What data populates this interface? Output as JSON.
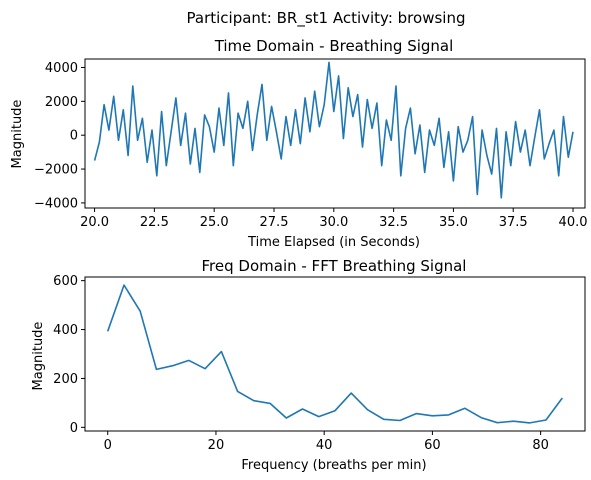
{
  "suptitle": "Participant: BR_st1  Activity: browsing",
  "chart_data": [
    {
      "type": "line",
      "title": "Time Domain - Breathing Signal",
      "xlabel": "Time Elapsed (in Seconds)",
      "ylabel": "Magnitude",
      "xlim": [
        19.6,
        40.5
      ],
      "ylim": [
        -4300,
        4500
      ],
      "xticks": [
        20.0,
        22.5,
        25.0,
        27.5,
        30.0,
        32.5,
        35.0,
        37.5,
        40.0
      ],
      "xtick_labels": [
        "20.0",
        "22.5",
        "25.0",
        "27.5",
        "30.0",
        "32.5",
        "35.0",
        "37.5",
        "40.0"
      ],
      "yticks": [
        -4000,
        -2000,
        0,
        2000,
        4000
      ],
      "ytick_labels": [
        "−4000",
        "−2000",
        "0",
        "2000",
        "4000"
      ],
      "grid": false,
      "series": [
        {
          "color": "#1f77b4",
          "x": [
            20.0,
            20.2,
            20.4,
            20.6,
            20.8,
            21.0,
            21.2,
            21.4,
            21.6,
            21.8,
            22.0,
            22.2,
            22.4,
            22.6,
            22.8,
            23.0,
            23.2,
            23.4,
            23.6,
            23.8,
            24.0,
            24.2,
            24.4,
            24.6,
            24.8,
            25.0,
            25.2,
            25.4,
            25.6,
            25.8,
            26.0,
            26.2,
            26.4,
            26.6,
            26.8,
            27.0,
            27.2,
            27.4,
            27.6,
            27.8,
            28.0,
            28.2,
            28.4,
            28.6,
            28.8,
            29.0,
            29.2,
            29.4,
            29.6,
            29.8,
            30.0,
            30.2,
            30.4,
            30.6,
            30.8,
            31.0,
            31.2,
            31.4,
            31.6,
            31.8,
            32.0,
            32.2,
            32.4,
            32.6,
            32.8,
            33.0,
            33.2,
            33.4,
            33.6,
            33.8,
            34.0,
            34.2,
            34.4,
            34.6,
            34.8,
            35.0,
            35.2,
            35.4,
            35.6,
            35.8,
            36.0,
            36.2,
            36.4,
            36.6,
            36.8,
            37.0,
            37.2,
            37.4,
            37.6,
            37.8,
            38.0,
            38.2,
            38.4,
            38.6,
            38.8,
            39.0,
            39.2,
            39.4,
            39.6,
            39.8,
            40.0
          ],
          "values": [
            -1500,
            -400,
            1800,
            300,
            2300,
            -300,
            1500,
            -1200,
            2900,
            -300,
            1000,
            -1600,
            300,
            -2400,
            1400,
            -1800,
            200,
            2200,
            -600,
            1300,
            -1700,
            400,
            -2200,
            1200,
            500,
            -1000,
            1600,
            -600,
            2500,
            -1800,
            1300,
            400,
            2000,
            -900,
            1200,
            3000,
            -300,
            1700,
            200,
            -1400,
            1100,
            -600,
            1500,
            -500,
            2200,
            200,
            2600,
            500,
            1800,
            4300,
            1400,
            3500,
            -200,
            2800,
            1100,
            2400,
            -700,
            2100,
            400,
            1900,
            -1800,
            900,
            -300,
            2900,
            -2400,
            400,
            1600,
            -1100,
            600,
            -2200,
            300,
            -600,
            1000,
            -1900,
            200,
            -2700,
            500,
            -1000,
            -300,
            1100,
            -3500,
            300,
            -1200,
            -2300,
            400,
            -3700,
            200,
            -1800,
            800,
            -1000,
            300,
            -1800,
            -100,
            1500,
            -1400,
            -500,
            300,
            -2400,
            1100,
            -1300,
            200
          ]
        }
      ]
    },
    {
      "type": "line",
      "title": "Freq Domain - FFT Breathing Signal",
      "xlabel": "Frequency (breaths per min)",
      "ylabel": "Magnitude",
      "xlim": [
        -4.2,
        88.2
      ],
      "ylim": [
        -15,
        615
      ],
      "xticks": [
        0,
        20,
        40,
        60,
        80
      ],
      "xtick_labels": [
        "0",
        "20",
        "40",
        "60",
        "80"
      ],
      "yticks": [
        0,
        200,
        400,
        600
      ],
      "ytick_labels": [
        "0",
        "200",
        "400",
        "600"
      ],
      "grid": false,
      "series": [
        {
          "color": "#1f77b4",
          "x": [
            0,
            3,
            6,
            9,
            12,
            15,
            18,
            21,
            24,
            27,
            30,
            33,
            36,
            39,
            42,
            45,
            48,
            51,
            54,
            57,
            60,
            63,
            66,
            69,
            72,
            75,
            78,
            81,
            84
          ],
          "values": [
            393,
            582,
            475,
            237,
            252,
            274,
            240,
            310,
            147,
            109,
            98,
            38,
            75,
            44,
            68,
            140,
            72,
            33,
            28,
            56,
            47,
            51,
            78,
            40,
            19,
            25,
            18,
            30,
            120
          ]
        }
      ]
    }
  ]
}
